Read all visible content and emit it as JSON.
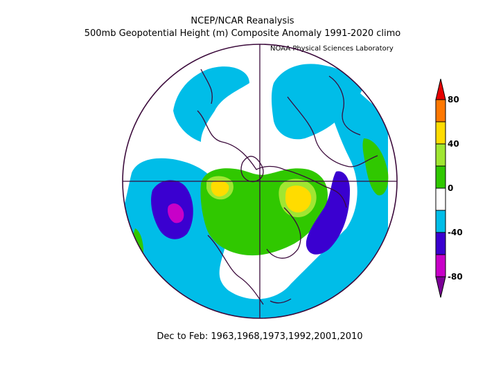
{
  "title": "NCEP/NCAR Reanalysis",
  "subtitle": "500mb Geopotential Height (m) Composite Anomaly 1991-2020 climo",
  "credit": "NOAA Physical Sciences Laboratory",
  "caption": "Dec to Feb: 1963,1968,1973,1992,2001,2010",
  "colorbar": {
    "labels": [
      "80",
      "40",
      "0",
      "-40",
      "-80"
    ],
    "colors": [
      "#7b0096",
      "#c800c8",
      "#3a00d0",
      "#00bde8",
      "#ffffff",
      "#30c800",
      "#a0e632",
      "#ffdc00",
      "#ff7800",
      "#e60000"
    ]
  }
}
